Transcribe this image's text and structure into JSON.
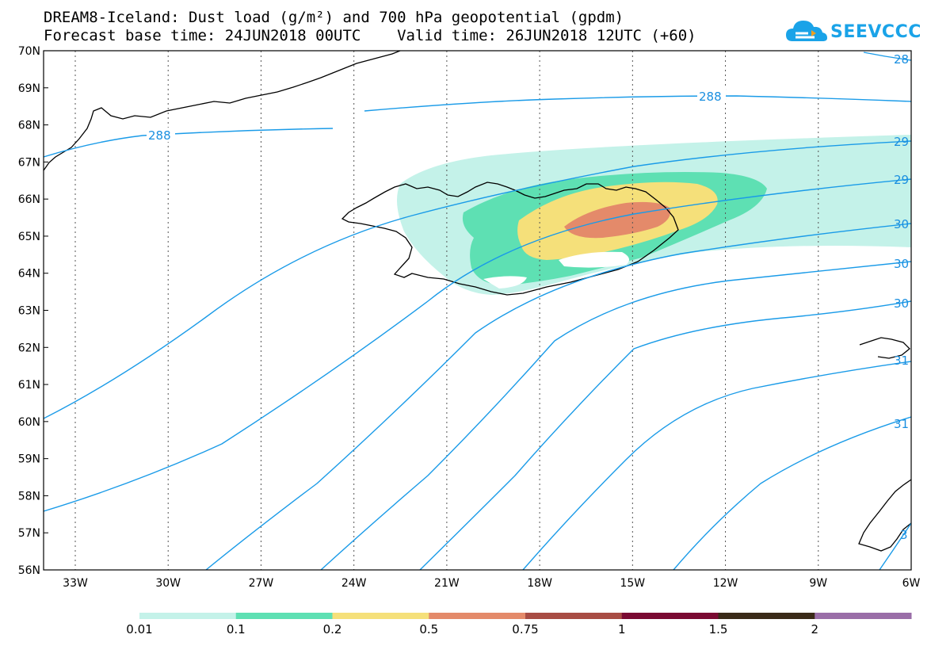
{
  "header": {
    "title_line1": "DREAM8-Iceland: Dust load (g/m²) and 700 hPa geopotential (gpdm)",
    "title_line2": "Forecast base time: 24JUN2018 00UTC    Valid time: 26JUN2018 12UTC (+60)"
  },
  "logo": {
    "text": "SEEVCCC",
    "color": "#1aa3e8"
  },
  "map": {
    "lat_labels": [
      "70N",
      "69N",
      "68N",
      "67N",
      "66N",
      "65N",
      "64N",
      "63N",
      "62N",
      "61N",
      "60N",
      "59N",
      "58N",
      "57N",
      "56N"
    ],
    "lon_labels": [
      "33W",
      "30W",
      "27W",
      "24W",
      "21W",
      "18W",
      "15W",
      "12W",
      "9W",
      "6W"
    ],
    "contour_labels": {
      "a": "288",
      "b": "288",
      "c": "28",
      "d": "29",
      "e": "29",
      "f": "30",
      "g": "30",
      "h": "30",
      "i": "31",
      "j": "31",
      "k": "3"
    },
    "contour_color": "#1a9be8",
    "coastline_color": "#000000",
    "dust_colors": {
      "0.01": "#c4f2e9",
      "0.1": "#5ee0b3",
      "0.2": "#f5e07a",
      "0.5": "#e48a6a"
    }
  },
  "colorbar": {
    "colors": [
      "#c4f2e9",
      "#5ee0b3",
      "#f5e07a",
      "#e48a6a",
      "#a84c44",
      "#7a0a32",
      "#3a2a18",
      "#9a6ea8"
    ],
    "labels": [
      "0.01",
      "0.1",
      "0.2",
      "0.5",
      "0.75",
      "1",
      "1.5",
      "2"
    ]
  }
}
